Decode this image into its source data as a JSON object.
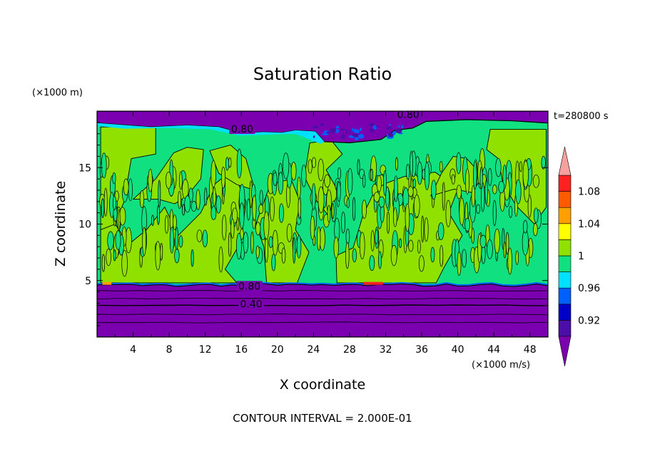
{
  "chart_data": {
    "type": "heatmap",
    "title": "Saturation Ratio",
    "xlabel": "X coordinate",
    "ylabel": "Z coordinate",
    "x_unit": "(×1000 m/s)",
    "y_unit": "(×1000 m)",
    "time_label": "t=280800 s",
    "footer": "CONTOUR INTERVAL = 2.000E-01",
    "xlim": [
      0,
      50
    ],
    "ylim": [
      0,
      20
    ],
    "x_ticks": [
      4,
      8,
      12,
      16,
      20,
      24,
      28,
      32,
      36,
      40,
      44,
      48
    ],
    "x_tick_labels": [
      "4",
      "8",
      "12",
      "16",
      "20",
      "24",
      "28",
      "32",
      "36",
      "40",
      "44",
      "48"
    ],
    "y_ticks": [
      5,
      10,
      15
    ],
    "y_tick_labels": [
      "5",
      "10",
      "15"
    ],
    "colorbar": {
      "bins": [
        {
          "lo": null,
          "hi": 0.9,
          "color": "#7a00b0"
        },
        {
          "lo": 0.9,
          "hi": 0.92,
          "color": "#4b0fa8"
        },
        {
          "lo": 0.92,
          "hi": 0.94,
          "color": "#0000c8"
        },
        {
          "lo": 0.94,
          "hi": 0.96,
          "color": "#0060ff"
        },
        {
          "lo": 0.96,
          "hi": 0.98,
          "color": "#00e0ff"
        },
        {
          "lo": 0.98,
          "hi": 1.0,
          "color": "#10e080"
        },
        {
          "lo": 1.0,
          "hi": 1.02,
          "color": "#90e000"
        },
        {
          "lo": 1.02,
          "hi": 1.04,
          "color": "#ffff00"
        },
        {
          "lo": 1.04,
          "hi": 1.06,
          "color": "#ffa000"
        },
        {
          "lo": 1.06,
          "hi": 1.08,
          "color": "#ff5a00"
        },
        {
          "lo": 1.08,
          "hi": 1.1,
          "color": "#ff2020"
        },
        {
          "lo": 1.1,
          "hi": null,
          "color": "#f6a0a0"
        }
      ],
      "labels": [
        "0.92",
        "0.96",
        "1",
        "1.04",
        "1.08"
      ],
      "label_values": [
        0.92,
        0.96,
        1.0,
        1.04,
        1.08
      ]
    },
    "contour_labels": [
      {
        "text": "0.80",
        "x": 34.5,
        "y": 19.6
      },
      {
        "text": "0.80",
        "x": 16.1,
        "y": 18.3
      },
      {
        "text": "0.80",
        "x": 16.9,
        "y": 4.4
      },
      {
        "text": "0.40",
        "x": 17.1,
        "y": 2.8
      }
    ],
    "regions": {
      "lower_dry_layer": {
        "z": [
          0,
          4.6
        ],
        "color": "#7a00b0"
      },
      "cloud_layer": {
        "z": [
          4.6,
          18.9
        ],
        "colors": [
          "#10e080",
          "#90e000"
        ]
      },
      "upper_dry_layer": {
        "z": [
          18.9,
          20
        ],
        "color": "#7a00b0"
      }
    }
  }
}
